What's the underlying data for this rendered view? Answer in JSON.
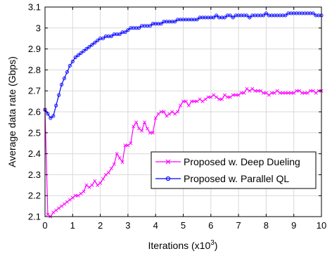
{
  "chart_data": {
    "type": "line",
    "xlabel_main": "Iterations (x10",
    "xlabel_sup": "3",
    "xlabel_close": ")",
    "ylabel": "Average data rate (Gbps)",
    "xlim": [
      0,
      10
    ],
    "ylim": [
      2.1,
      3.1
    ],
    "grid": true,
    "legend_position": "lower-right",
    "x_ticks": [
      0,
      1,
      2,
      3,
      4,
      5,
      6,
      7,
      8,
      9,
      10
    ],
    "y_ticks": [
      2.1,
      2.2,
      2.3,
      2.4,
      2.5,
      2.6,
      2.7,
      2.8,
      2.9,
      3.0,
      3.1
    ],
    "x_tick_labels": [
      "0",
      "1",
      "2",
      "3",
      "4",
      "5",
      "6",
      "7",
      "8",
      "9",
      "10"
    ],
    "y_tick_labels": [
      "2.1",
      "2.2",
      "2.3",
      "2.4",
      "2.5",
      "2.6",
      "2.7",
      "2.8",
      "2.9",
      "3",
      "3.1"
    ],
    "series": [
      {
        "name": "Proposed w. Deep Dueling",
        "color": "#ff00ff",
        "marker": "x",
        "x": [
          0.0,
          0.1,
          0.2,
          0.3,
          0.4,
          0.5,
          0.6,
          0.7,
          0.8,
          0.9,
          1.0,
          1.1,
          1.2,
          1.3,
          1.4,
          1.5,
          1.6,
          1.7,
          1.8,
          1.9,
          2.0,
          2.1,
          2.2,
          2.3,
          2.4,
          2.5,
          2.6,
          2.7,
          2.8,
          2.9,
          3.0,
          3.1,
          3.2,
          3.3,
          3.4,
          3.5,
          3.6,
          3.7,
          3.8,
          3.9,
          4.0,
          4.1,
          4.2,
          4.3,
          4.4,
          4.5,
          4.6,
          4.7,
          4.8,
          4.9,
          5.0,
          5.1,
          5.2,
          5.3,
          5.4,
          5.5,
          5.6,
          5.7,
          5.8,
          5.9,
          6.0,
          6.1,
          6.2,
          6.3,
          6.4,
          6.5,
          6.6,
          6.7,
          6.8,
          6.9,
          7.0,
          7.1,
          7.2,
          7.3,
          7.4,
          7.5,
          7.6,
          7.7,
          7.8,
          7.9,
          8.0,
          8.1,
          8.2,
          8.3,
          8.4,
          8.5,
          8.6,
          8.7,
          8.8,
          8.9,
          9.0,
          9.1,
          9.2,
          9.3,
          9.4,
          9.5,
          9.6,
          9.7,
          9.8,
          9.9,
          10.0
        ],
        "values": [
          2.61,
          2.11,
          2.1,
          2.12,
          2.13,
          2.14,
          2.15,
          2.16,
          2.17,
          2.18,
          2.19,
          2.2,
          2.2,
          2.21,
          2.22,
          2.25,
          2.24,
          2.25,
          2.27,
          2.25,
          2.26,
          2.28,
          2.3,
          2.31,
          2.33,
          2.35,
          2.4,
          2.38,
          2.36,
          2.44,
          2.44,
          2.45,
          2.53,
          2.55,
          2.52,
          2.51,
          2.55,
          2.52,
          2.5,
          2.5,
          2.57,
          2.59,
          2.6,
          2.6,
          2.58,
          2.59,
          2.6,
          2.59,
          2.6,
          2.63,
          2.65,
          2.65,
          2.63,
          2.65,
          2.65,
          2.65,
          2.66,
          2.65,
          2.66,
          2.67,
          2.67,
          2.68,
          2.67,
          2.66,
          2.66,
          2.68,
          2.67,
          2.67,
          2.68,
          2.68,
          2.68,
          2.69,
          2.69,
          2.71,
          2.7,
          2.71,
          2.7,
          2.7,
          2.7,
          2.69,
          2.69,
          2.68,
          2.69,
          2.69,
          2.7,
          2.69,
          2.69,
          2.69,
          2.69,
          2.69,
          2.69,
          2.7,
          2.7,
          2.69,
          2.69,
          2.69,
          2.7,
          2.7,
          2.69,
          2.7,
          2.7
        ]
      },
      {
        "name": "Proposed w. Parallel QL",
        "color": "#0000ff",
        "marker": "o",
        "x": [
          0.0,
          0.1,
          0.2,
          0.3,
          0.4,
          0.5,
          0.6,
          0.7,
          0.8,
          0.9,
          1.0,
          1.1,
          1.2,
          1.3,
          1.4,
          1.5,
          1.6,
          1.7,
          1.8,
          1.9,
          2.0,
          2.1,
          2.2,
          2.3,
          2.4,
          2.5,
          2.6,
          2.7,
          2.8,
          2.9,
          3.0,
          3.1,
          3.2,
          3.3,
          3.4,
          3.5,
          3.6,
          3.7,
          3.8,
          3.9,
          4.0,
          4.1,
          4.2,
          4.3,
          4.4,
          4.5,
          4.6,
          4.7,
          4.8,
          4.9,
          5.0,
          5.1,
          5.2,
          5.3,
          5.4,
          5.5,
          5.6,
          5.7,
          5.8,
          5.9,
          6.0,
          6.1,
          6.2,
          6.3,
          6.4,
          6.5,
          6.6,
          6.7,
          6.8,
          6.9,
          7.0,
          7.1,
          7.2,
          7.3,
          7.4,
          7.5,
          7.6,
          7.7,
          7.8,
          7.9,
          8.0,
          8.1,
          8.2,
          8.3,
          8.4,
          8.5,
          8.6,
          8.7,
          8.8,
          8.9,
          9.0,
          9.1,
          9.2,
          9.3,
          9.4,
          9.5,
          9.6,
          9.7,
          9.8,
          9.9,
          10.0
        ],
        "values": [
          2.61,
          2.59,
          2.57,
          2.58,
          2.63,
          2.68,
          2.73,
          2.76,
          2.79,
          2.82,
          2.84,
          2.86,
          2.87,
          2.88,
          2.89,
          2.9,
          2.91,
          2.92,
          2.93,
          2.94,
          2.95,
          2.95,
          2.96,
          2.96,
          2.96,
          2.97,
          2.97,
          2.97,
          2.98,
          2.98,
          2.99,
          3.0,
          3.0,
          3.0,
          3.0,
          3.01,
          3.01,
          3.01,
          3.01,
          3.02,
          3.02,
          3.02,
          3.02,
          3.03,
          3.03,
          3.03,
          3.03,
          3.03,
          3.04,
          3.04,
          3.04,
          3.04,
          3.04,
          3.04,
          3.04,
          3.04,
          3.05,
          3.05,
          3.05,
          3.05,
          3.05,
          3.05,
          3.06,
          3.05,
          3.05,
          3.05,
          3.06,
          3.06,
          3.05,
          3.06,
          3.06,
          3.06,
          3.06,
          3.06,
          3.05,
          3.06,
          3.06,
          3.06,
          3.06,
          3.06,
          3.07,
          3.06,
          3.06,
          3.06,
          3.06,
          3.06,
          3.06,
          3.06,
          3.07,
          3.07,
          3.07,
          3.07,
          3.07,
          3.07,
          3.07,
          3.07,
          3.07,
          3.07,
          3.06,
          3.06,
          3.06
        ]
      }
    ]
  }
}
